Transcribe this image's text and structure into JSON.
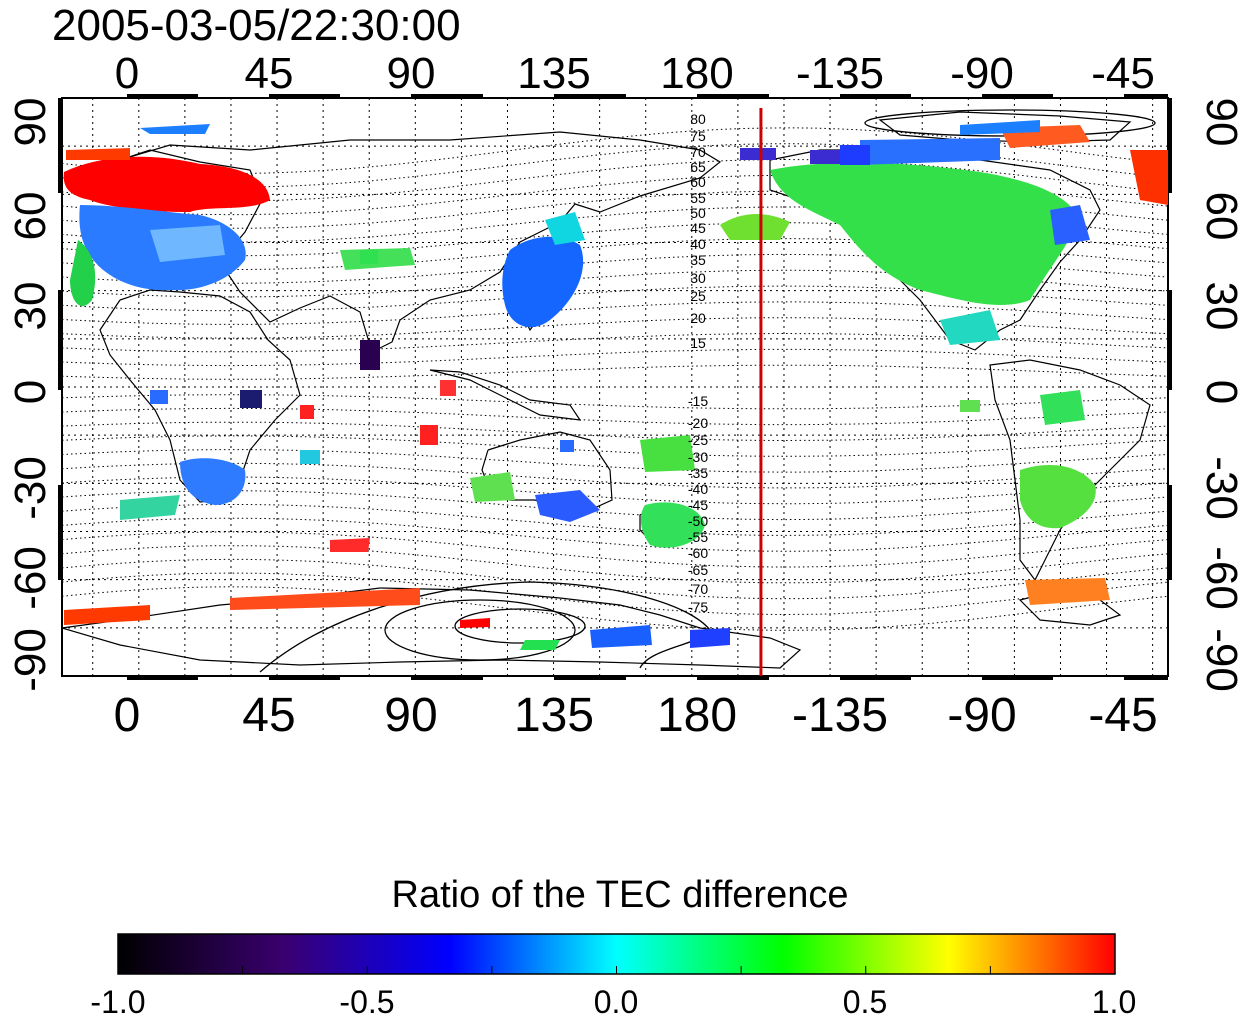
{
  "map": {
    "title": "2005-03-05/22:30:00",
    "top_axis_ticks": [
      "0",
      "45",
      "90",
      "135",
      "180",
      "-135",
      "-90",
      "-45"
    ],
    "bottom_axis_ticks": [
      "0",
      "45",
      "90",
      "135",
      "180",
      "-135",
      "-90",
      "-45"
    ],
    "left_axis_ticks": [
      "90",
      "60",
      "30",
      "0",
      "-30",
      "-60",
      "-90"
    ],
    "right_axis_ticks": [
      "90",
      "60",
      "30",
      "0",
      "-30",
      "-60",
      "-90"
    ],
    "contour_labels_north": [
      "80",
      "75",
      "70",
      "65",
      "60",
      "55",
      "50",
      "45",
      "40",
      "35",
      "30",
      "25",
      "20",
      "15"
    ],
    "contour_labels_south": [
      "-15",
      "-20",
      "-25",
      "-30",
      "-35",
      "-40",
      "-45",
      "-50",
      "-55",
      "-60",
      "-65",
      "-70",
      "-75"
    ],
    "terminator_longitude": -157.5,
    "terminator_color": "#d00000"
  },
  "colorbar": {
    "title": "Ratio of the TEC difference",
    "ticks": [
      "-1.0",
      "-0.5",
      "0.0",
      "0.5",
      "1.0"
    ],
    "range": [
      -1.0,
      1.0
    ],
    "colors": [
      "#000000",
      "#3a0070",
      "#0000ff",
      "#00ffff",
      "#00ff00",
      "#ffff00",
      "#ff0000"
    ]
  }
}
